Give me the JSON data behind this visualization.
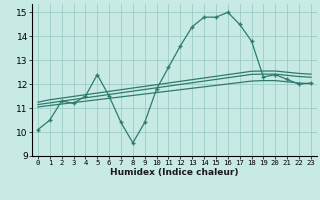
{
  "x_main": [
    0,
    1,
    2,
    3,
    4,
    5,
    6,
    7,
    8,
    9,
    10,
    11,
    12,
    13,
    14,
    15,
    16,
    17,
    18,
    19,
    20,
    21,
    22,
    23
  ],
  "y_main": [
    10.1,
    10.5,
    11.3,
    11.2,
    11.5,
    12.4,
    11.5,
    10.4,
    9.55,
    10.4,
    11.8,
    12.7,
    13.6,
    14.4,
    14.8,
    14.8,
    15.0,
    14.5,
    13.8,
    12.3,
    12.4,
    12.2,
    12.0,
    12.05
  ],
  "y_line1": [
    11.25,
    11.35,
    11.42,
    11.49,
    11.56,
    11.63,
    11.7,
    11.77,
    11.84,
    11.91,
    11.98,
    12.05,
    12.12,
    12.19,
    12.26,
    12.33,
    12.4,
    12.47,
    12.54,
    12.55,
    12.55,
    12.5,
    12.45,
    12.42
  ],
  "y_line2": [
    11.15,
    11.22,
    11.29,
    11.36,
    11.43,
    11.5,
    11.57,
    11.64,
    11.71,
    11.78,
    11.85,
    11.92,
    11.99,
    12.06,
    12.13,
    12.2,
    12.27,
    12.34,
    12.41,
    12.42,
    12.42,
    12.37,
    12.32,
    12.29
  ],
  "y_line3": [
    11.05,
    11.11,
    11.17,
    11.23,
    11.29,
    11.35,
    11.41,
    11.47,
    11.53,
    11.59,
    11.65,
    11.71,
    11.77,
    11.83,
    11.89,
    11.95,
    12.01,
    12.07,
    12.13,
    12.15,
    12.15,
    12.1,
    12.05,
    12.02
  ],
  "line_color": "#2E7B6E",
  "bg_color": "#C8EAE5",
  "grid_color": "#9ECDC7",
  "xlabel": "Humidex (Indice chaleur)",
  "ylim": [
    9,
    15.35
  ],
  "xlim": [
    -0.5,
    23.5
  ],
  "yticks": [
    9,
    10,
    11,
    12,
    13,
    14,
    15
  ],
  "xticks": [
    0,
    1,
    2,
    3,
    4,
    5,
    6,
    7,
    8,
    9,
    10,
    11,
    12,
    13,
    14,
    15,
    16,
    17,
    18,
    19,
    20,
    21,
    22,
    23
  ]
}
